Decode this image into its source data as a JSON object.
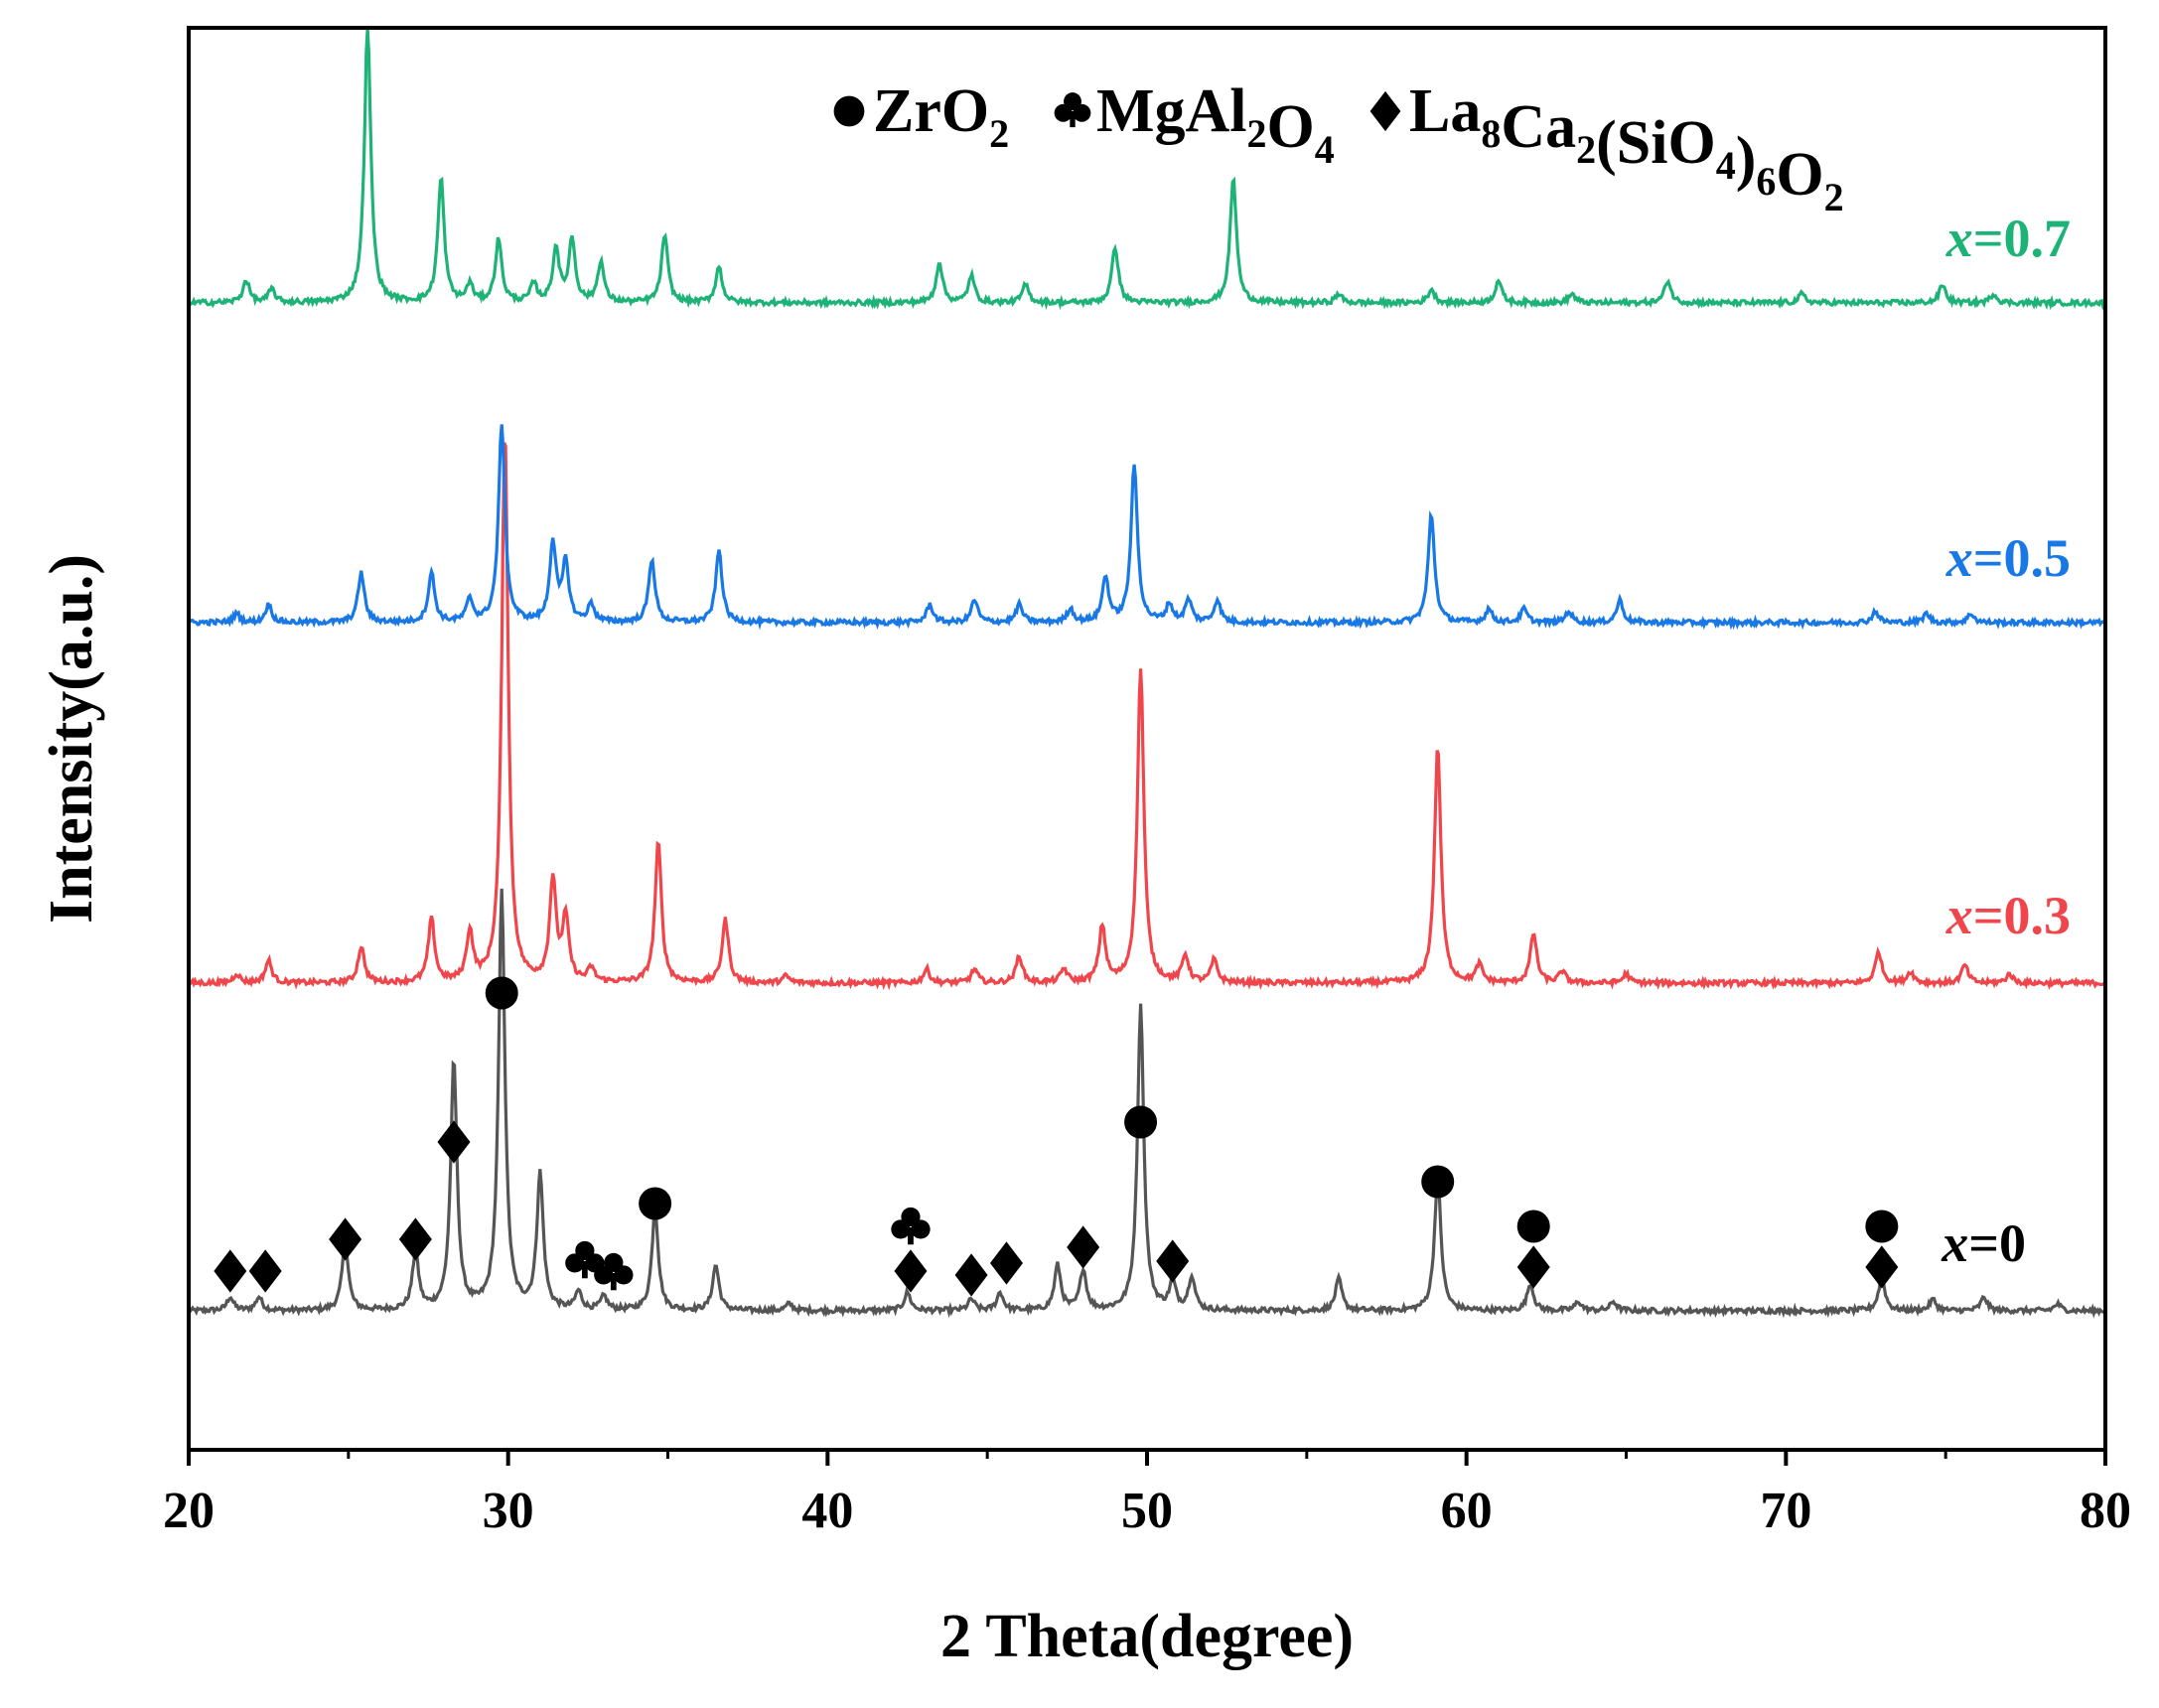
{
  "chart_data": {
    "type": "line",
    "title": "",
    "xlabel": "2 Theta(degree)",
    "ylabel": "Intensity(a.u.)",
    "xlim": [
      20,
      80
    ],
    "x_ticks": [
      "20",
      "30",
      "40",
      "50",
      "60",
      "70",
      "80"
    ],
    "y_ticks_shown": false,
    "grid": false,
    "legend_position": "top-right",
    "legend": [
      {
        "marker": "circle",
        "label": "ZrO",
        "sub": "2",
        "chemical_formula": "ZrO2"
      },
      {
        "marker": "club",
        "label": "MgAl",
        "sub": "2",
        "label2": "O",
        "sub2": "4",
        "chemical_formula": "MgAl2O4"
      },
      {
        "marker": "diamond",
        "label": "La",
        "sub": "8",
        "label2": "Ca",
        "sub2": "2",
        "label3": "(SiO",
        "sub3": "4",
        "label4": ")",
        "sub4": "6",
        "label5": "O",
        "sub5": "2",
        "chemical_formula": "La8Ca2(SiO4)6O2"
      }
    ],
    "series": [
      {
        "name": "x=0",
        "label_var": "x",
        "label_val": "=0",
        "color": "#555555",
        "baseline": 0,
        "peaks": [
          [
            21.3,
            6
          ],
          [
            22.2,
            6
          ],
          [
            24.9,
            30
          ],
          [
            27.1,
            25
          ],
          [
            28.3,
            110
          ],
          [
            29.8,
            185
          ],
          [
            31.0,
            60
          ],
          [
            32.2,
            8
          ],
          [
            33.0,
            6
          ],
          [
            34.6,
            45
          ],
          [
            36.5,
            20
          ],
          [
            38.8,
            3
          ],
          [
            42.5,
            8
          ],
          [
            44.5,
            5
          ],
          [
            45.4,
            8
          ],
          [
            47.2,
            20
          ],
          [
            48.0,
            18
          ],
          [
            49.8,
            135
          ],
          [
            50.8,
            12
          ],
          [
            51.4,
            15
          ],
          [
            56.0,
            14
          ],
          [
            59.1,
            60
          ],
          [
            62.0,
            12
          ],
          [
            63.5,
            4
          ],
          [
            64.6,
            4
          ],
          [
            73.0,
            15
          ],
          [
            74.6,
            5
          ],
          [
            76.2,
            6
          ],
          [
            78.5,
            3
          ]
        ]
      },
      {
        "name": "x=0.3",
        "label_var": "x",
        "label_val": "=0.3",
        "color": "#f0454a",
        "baseline": 0.98,
        "peaks": [
          [
            21.5,
            4
          ],
          [
            22.5,
            10
          ],
          [
            25.4,
            16
          ],
          [
            27.6,
            28
          ],
          [
            28.8,
            22
          ],
          [
            29.9,
            245
          ],
          [
            31.4,
            45
          ],
          [
            31.8,
            28
          ],
          [
            32.6,
            6
          ],
          [
            34.7,
            62
          ],
          [
            36.8,
            28
          ],
          [
            38.7,
            3
          ],
          [
            43.1,
            6
          ],
          [
            44.6,
            6
          ],
          [
            46.0,
            12
          ],
          [
            47.4,
            6
          ],
          [
            48.6,
            25
          ],
          [
            49.8,
            140
          ],
          [
            51.2,
            12
          ],
          [
            52.1,
            10
          ],
          [
            59.1,
            105
          ],
          [
            60.4,
            8
          ],
          [
            62.1,
            22
          ],
          [
            63.0,
            5
          ],
          [
            65.0,
            4
          ],
          [
            72.9,
            14
          ],
          [
            73.9,
            5
          ],
          [
            75.6,
            8
          ],
          [
            77.0,
            4
          ]
        ]
      },
      {
        "name": "x=0.5",
        "label_var": "x",
        "label_val": "=0.5",
        "color": "#1878e6",
        "baseline": 2.0,
        "peaks": [
          [
            21.5,
            4
          ],
          [
            22.5,
            8
          ],
          [
            25.4,
            22
          ],
          [
            27.6,
            22
          ],
          [
            28.8,
            10
          ],
          [
            29.8,
            88
          ],
          [
            31.4,
            35
          ],
          [
            31.8,
            26
          ],
          [
            32.6,
            8
          ],
          [
            34.5,
            28
          ],
          [
            36.6,
            32
          ],
          [
            43.2,
            8
          ],
          [
            44.6,
            10
          ],
          [
            46.0,
            8
          ],
          [
            47.6,
            6
          ],
          [
            48.7,
            20
          ],
          [
            49.6,
            70
          ],
          [
            50.7,
            8
          ],
          [
            51.3,
            10
          ],
          [
            52.2,
            10
          ],
          [
            58.9,
            48
          ],
          [
            60.7,
            6
          ],
          [
            61.8,
            6
          ],
          [
            63.2,
            5
          ],
          [
            64.8,
            10
          ],
          [
            72.8,
            5
          ],
          [
            74.4,
            4
          ],
          [
            75.8,
            4
          ]
        ]
      },
      {
        "name": "x=0.7",
        "label_var": "x",
        "label_val": "=0.7",
        "color": "#1db377",
        "baseline": 3.0,
        "peaks": [
          [
            21.8,
            10
          ],
          [
            22.6,
            6
          ],
          [
            25.6,
            122
          ],
          [
            27.9,
            55
          ],
          [
            28.8,
            8
          ],
          [
            29.7,
            28
          ],
          [
            30.8,
            8
          ],
          [
            31.5,
            24
          ],
          [
            32.0,
            28
          ],
          [
            32.9,
            18
          ],
          [
            34.9,
            30
          ],
          [
            36.6,
            16
          ],
          [
            43.5,
            18
          ],
          [
            44.5,
            12
          ],
          [
            46.2,
            8
          ],
          [
            49.0,
            25
          ],
          [
            52.7,
            55
          ],
          [
            56.0,
            4
          ],
          [
            58.9,
            6
          ],
          [
            61.0,
            10
          ],
          [
            63.3,
            4
          ],
          [
            66.3,
            10
          ],
          [
            70.5,
            4
          ],
          [
            74.9,
            8
          ],
          [
            76.5,
            4
          ]
        ]
      }
    ],
    "annotations": [
      {
        "marker": "diamond",
        "phase": "La8Ca2(SiO4)6O2",
        "x": 21.3
      },
      {
        "marker": "diamond",
        "phase": "La8Ca2(SiO4)6O2",
        "x": 22.4
      },
      {
        "marker": "diamond",
        "phase": "La8Ca2(SiO4)6O2",
        "x": 24.9
      },
      {
        "marker": "diamond",
        "phase": "La8Ca2(SiO4)6O2",
        "x": 27.1
      },
      {
        "marker": "diamond",
        "phase": "La8Ca2(SiO4)6O2",
        "x": 28.3
      },
      {
        "marker": "circle",
        "phase": "ZrO2",
        "x": 29.8
      },
      {
        "marker": "club",
        "phase": "MgAl2O4",
        "x": 32.4
      },
      {
        "marker": "club",
        "phase": "MgAl2O4",
        "x": 33.3
      },
      {
        "marker": "circle",
        "phase": "ZrO2",
        "x": 34.6
      },
      {
        "marker": "diamond",
        "phase": "La8Ca2(SiO4)6O2",
        "x": 42.6
      },
      {
        "marker": "club",
        "phase": "MgAl2O4",
        "x": 42.6
      },
      {
        "marker": "diamond",
        "phase": "La8Ca2(SiO4)6O2",
        "x": 44.5
      },
      {
        "marker": "diamond",
        "phase": "La8Ca2(SiO4)6O2",
        "x": 45.6
      },
      {
        "marker": "diamond",
        "phase": "La8Ca2(SiO4)6O2",
        "x": 48.0
      },
      {
        "marker": "circle",
        "phase": "ZrO2",
        "x": 49.8
      },
      {
        "marker": "diamond",
        "phase": "La8Ca2(SiO4)6O2",
        "x": 50.8
      },
      {
        "marker": "circle",
        "phase": "ZrO2",
        "x": 59.1
      },
      {
        "marker": "circle",
        "phase": "ZrO2",
        "x": 62.1
      },
      {
        "marker": "diamond",
        "phase": "La8Ca2(SiO4)6O2",
        "x": 62.1
      },
      {
        "marker": "circle",
        "phase": "ZrO2",
        "x": 73.0
      },
      {
        "marker": "diamond",
        "phase": "La8Ca2(SiO4)6O2",
        "x": 73.0
      }
    ]
  }
}
